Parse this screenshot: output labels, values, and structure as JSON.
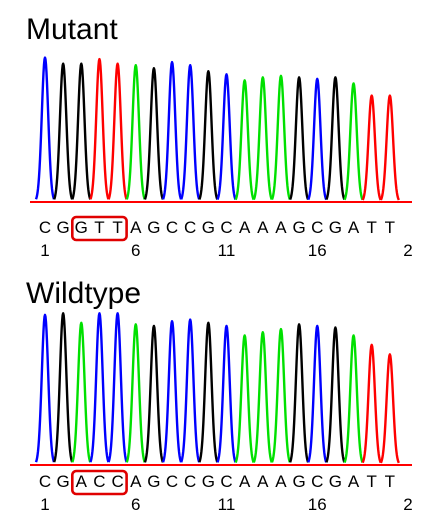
{
  "chart_data": [
    {
      "type": "line",
      "title": "Mutant",
      "sequence": [
        "C",
        "G",
        "G",
        "T",
        "T",
        "A",
        "G",
        "C",
        "C",
        "G",
        "C",
        "A",
        "A",
        "A",
        "G",
        "C",
        "G",
        "A",
        "T",
        "T"
      ],
      "position_labels": [
        {
          "index": 1,
          "label": "1"
        },
        {
          "index": 6,
          "label": "6"
        },
        {
          "index": 11,
          "label": "11"
        },
        {
          "index": 16,
          "label": "16"
        },
        {
          "index": 21,
          "label": "2"
        }
      ],
      "highlight": {
        "start": 3,
        "end": 5
      },
      "peaks": [
        {
          "base": "C",
          "height": 0.95
        },
        {
          "base": "G",
          "height": 0.91
        },
        {
          "base": "G",
          "height": 0.91
        },
        {
          "base": "T",
          "height": 0.94
        },
        {
          "base": "T",
          "height": 0.91
        },
        {
          "base": "A",
          "height": 0.9
        },
        {
          "base": "G",
          "height": 0.88
        },
        {
          "base": "C",
          "height": 0.92
        },
        {
          "base": "C",
          "height": 0.9
        },
        {
          "base": "G",
          "height": 0.86
        },
        {
          "base": "C",
          "height": 0.84
        },
        {
          "base": "A",
          "height": 0.8
        },
        {
          "base": "A",
          "height": 0.82
        },
        {
          "base": "A",
          "height": 0.83
        },
        {
          "base": "G",
          "height": 0.82
        },
        {
          "base": "C",
          "height": 0.81
        },
        {
          "base": "G",
          "height": 0.82
        },
        {
          "base": "A",
          "height": 0.78
        },
        {
          "base": "T",
          "height": 0.7
        },
        {
          "base": "T",
          "height": 0.7
        }
      ]
    },
    {
      "type": "line",
      "title": "Wildtype",
      "sequence": [
        "C",
        "G",
        "A",
        "C",
        "C",
        "A",
        "G",
        "C",
        "C",
        "G",
        "C",
        "A",
        "A",
        "A",
        "G",
        "C",
        "G",
        "A",
        "T",
        "T"
      ],
      "position_labels": [
        {
          "index": 1,
          "label": "1"
        },
        {
          "index": 6,
          "label": "6"
        },
        {
          "index": 11,
          "label": "11"
        },
        {
          "index": 16,
          "label": "16"
        },
        {
          "index": 21,
          "label": "2"
        }
      ],
      "highlight": {
        "start": 3,
        "end": 5
      },
      "peaks": [
        {
          "base": "C",
          "height": 0.95
        },
        {
          "base": "G",
          "height": 0.96
        },
        {
          "base": "A",
          "height": 0.9
        },
        {
          "base": "C",
          "height": 0.96
        },
        {
          "base": "C",
          "height": 0.96
        },
        {
          "base": "A",
          "height": 0.89
        },
        {
          "base": "G",
          "height": 0.88
        },
        {
          "base": "C",
          "height": 0.91
        },
        {
          "base": "C",
          "height": 0.92
        },
        {
          "base": "G",
          "height": 0.9
        },
        {
          "base": "C",
          "height": 0.88
        },
        {
          "base": "A",
          "height": 0.82
        },
        {
          "base": "A",
          "height": 0.84
        },
        {
          "base": "A",
          "height": 0.86
        },
        {
          "base": "G",
          "height": 0.89
        },
        {
          "base": "C",
          "height": 0.88
        },
        {
          "base": "G",
          "height": 0.87
        },
        {
          "base": "A",
          "height": 0.82
        },
        {
          "base": "T",
          "height": 0.76
        },
        {
          "base": "T",
          "height": 0.7
        }
      ]
    }
  ],
  "colors": {
    "A": "#00e000",
    "C": "#0000ff",
    "G": "#000000",
    "T": "#ff0000",
    "highlight_box": "#e00000",
    "baseline": "#ff0000"
  }
}
